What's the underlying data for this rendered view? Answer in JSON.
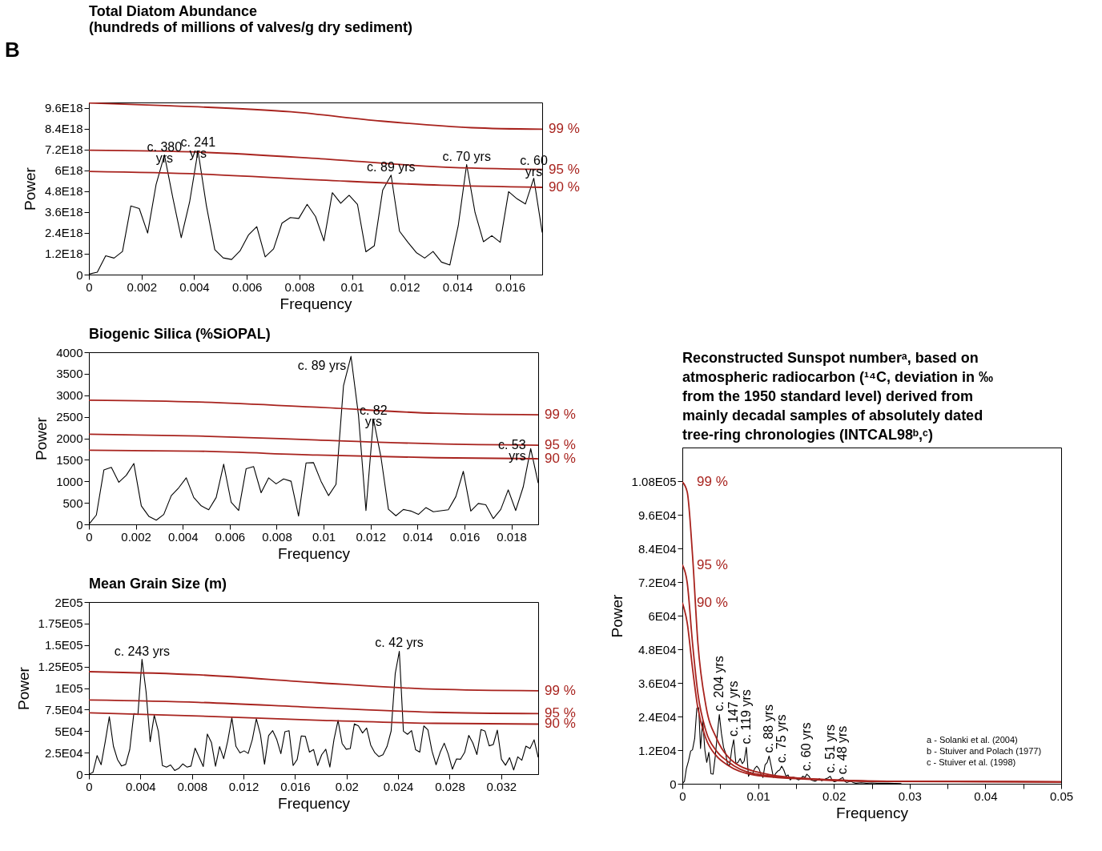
{
  "chart_data": [
    {
      "type": "line",
      "title": "Total Diatom Abundance",
      "subtitle": "(hundreds of millions of valves/g dry sediment)",
      "xlabel": "Frequency",
      "ylabel": "Power",
      "xlim": [
        0,
        0.017226
      ],
      "ylim": [
        0,
        9.9e+18
      ],
      "xticks": [
        0,
        0.002,
        0.004,
        0.006,
        0.008,
        0.01,
        0.012,
        0.014,
        0.016
      ],
      "yticks": [
        0,
        {
          "value": 1.2e+18,
          "label": "1.2E18"
        },
        {
          "value": 2.4e+18,
          "label": "2.4E18"
        },
        {
          "value": 3.6e+18,
          "label": "3.6E18"
        },
        {
          "value": 4.8e+18,
          "label": "4.8E18"
        },
        {
          "value": 6e+18,
          "label": "6E18"
        },
        {
          "value": 7.2e+18,
          "label": "7.2E18"
        },
        {
          "value": 8.4e+18,
          "label": "8.4E18"
        },
        {
          "value": 9.6e+18,
          "label": "9.6E18"
        }
      ],
      "series": [
        {
          "color": "#000000",
          "x": [
            0,
            0.000319,
            0.000638,
            0.000957,
            0.001276,
            0.001595,
            0.001914,
            0.002233,
            0.002552,
            0.002871,
            0.00319,
            0.003509,
            0.003828,
            0.004147,
            0.004466,
            0.004785,
            0.005104,
            0.005423,
            0.005742,
            0.006061,
            0.00638,
            0.006699,
            0.007018,
            0.007337,
            0.007656,
            0.007975,
            0.008294,
            0.008613,
            0.008932,
            0.009251,
            0.00957,
            0.009889,
            0.010208,
            0.010527,
            0.010846,
            0.011165,
            0.011484,
            0.011803,
            0.012122,
            0.012441,
            0.01276,
            0.013079,
            0.013398,
            0.013717,
            0.014036,
            0.014355,
            0.014674,
            0.014993,
            0.015312,
            0.015631,
            0.01595,
            0.016269,
            0.016588,
            0.016907,
            0.017226
          ],
          "values": [
            3e+16,
            1.4e+17,
            1.08e+18,
            9.5e+17,
            1.33e+18,
            3.95e+18,
            3.8e+18,
            2.39e+18,
            5.17e+18,
            6.88e+18,
            4.41e+18,
            2.12e+18,
            4.18e+18,
            7.12e+18,
            3.95e+18,
            1.43e+18,
            9.6e+17,
            8.7e+17,
            1.36e+18,
            2.27e+18,
            2.76e+18,
            1.02e+18,
            1.48e+18,
            2.96e+18,
            3.28e+18,
            3.23e+18,
            4.04e+18,
            3.34e+18,
            1.94e+18,
            4.71e+18,
            4.1e+18,
            4.56e+18,
            4.03e+18,
            1.31e+18,
            1.66e+18,
            4.86e+18,
            5.72e+18,
            2.5e+18,
            1.86e+18,
            1.27e+18,
            9.5e+17,
            1.33e+18,
            7.2e+17,
            5.5e+17,
            2.81e+18,
            6.33e+18,
            3.57e+18,
            1.89e+18,
            2.24e+18,
            1.86e+18,
            4.77e+18,
            4.36e+18,
            4.06e+18,
            5.54e+18,
            2.42e+18
          ]
        },
        {
          "name": "99 %",
          "color": "#a8231e",
          "x": [
            0,
            0.0031,
            0.00768,
            0.01111,
            0.01454,
            0.017226
          ],
          "values": [
            9.87e+18,
            9.71e+18,
            9.36e+18,
            8.83e+18,
            8.45e+18,
            8.36e+18
          ]
        },
        {
          "name": "95 %",
          "color": "#a8231e",
          "x": [
            0,
            0.00424,
            0.00882,
            0.0134,
            0.017226
          ],
          "values": [
            7.15e+18,
            7.04e+18,
            6.66e+18,
            6.19e+18,
            6.05e+18
          ]
        },
        {
          "name": "90 %",
          "color": "#a8231e",
          "x": [
            0,
            0.00424,
            0.00882,
            0.0134,
            0.017226
          ],
          "values": [
            5.93e+18,
            5.78e+18,
            5.44e+18,
            5.14e+18,
            5.02e+18
          ]
        }
      ],
      "annotations": [
        "B",
        {
          "text": "c. 380\nyrs",
          "x": 0.002871,
          "y": 6.88e+18
        },
        {
          "text": "c. 241\nyrs",
          "x": 0.004147,
          "y": 7.12e+18
        },
        {
          "text": "c. 89 yrs",
          "x": 0.011484,
          "y": 5.72e+18
        },
        {
          "text": "c. 70 yrs",
          "x": 0.014355,
          "y": 6.33e+18
        },
        {
          "text": "c. 60\nyrs",
          "x": 0.016907,
          "y": 5.54e+18
        }
      ]
    },
    {
      "type": "line",
      "title": "Biogenic Silica (%SiOPAL)",
      "xlabel": "Frequency",
      "ylabel": "Power",
      "xlim": [
        0,
        0.01914
      ],
      "ylim": [
        0,
        4000
      ],
      "xticks": [
        0,
        0.002,
        0.004,
        0.006,
        0.008,
        0.01,
        0.012,
        0.014,
        0.016,
        0.018
      ],
      "yticks": [
        0,
        500,
        1000,
        1500,
        2000,
        2500,
        3000,
        3500,
        4000
      ],
      "series": [
        {
          "color": "#000000",
          "x": [
            0,
            0.000319,
            0.000638,
            0.000957,
            0.001276,
            0.001595,
            0.001914,
            0.002233,
            0.002552,
            0.002871,
            0.00319,
            0.003509,
            0.003828,
            0.004147,
            0.004466,
            0.004785,
            0.005104,
            0.005423,
            0.005742,
            0.006061,
            0.00638,
            0.006699,
            0.007018,
            0.007337,
            0.007656,
            0.007975,
            0.008294,
            0.008613,
            0.008932,
            0.009251,
            0.00957,
            0.009889,
            0.010208,
            0.010527,
            0.010846,
            0.011165,
            0.011484,
            0.011803,
            0.012122,
            0.012441,
            0.01276,
            0.013079,
            0.013398,
            0.013717,
            0.014036,
            0.014355,
            0.014674,
            0.014993,
            0.015312,
            0.015631,
            0.01595,
            0.016269,
            0.016588,
            0.016907,
            0.017226,
            0.017545,
            0.017864,
            0.018183,
            0.018502,
            0.018821,
            0.01914
          ],
          "values": [
            0,
            219,
            1264,
            1324,
            978,
            1142,
            1415,
            431,
            188,
            97,
            231,
            668,
            851,
            1081,
            626,
            431,
            340,
            626,
            1397,
            516,
            322,
            1294,
            1343,
            735,
            1081,
            942,
            1057,
            1002,
            194,
            1428,
            1434,
            1002,
            668,
            929,
            3220,
            3906,
            2539,
            322,
            2448,
            1567,
            352,
            200,
            346,
            310,
            231,
            389,
            292,
            316,
            340,
            644,
            1233,
            310,
            486,
            456,
            134,
            346,
            802,
            322,
            869,
            1762,
            960
          ]
        },
        {
          "name": "99 %",
          "color": "#a8231e",
          "x": [
            0,
            0.00467,
            0.00972,
            0.01476,
            0.01914
          ],
          "values": [
            2886,
            2843,
            2722,
            2582,
            2545
          ]
        },
        {
          "name": "95 %",
          "color": "#a8231e",
          "x": [
            0,
            0.00467,
            0.00972,
            0.01476,
            0.01914
          ],
          "values": [
            2096,
            2053,
            1962,
            1871,
            1841
          ]
        },
        {
          "name": "90 %",
          "color": "#a8231e",
          "x": [
            0,
            0.00467,
            0.00972,
            0.01476,
            0.01914
          ],
          "values": [
            1725,
            1701,
            1610,
            1549,
            1525
          ]
        }
      ],
      "annotations": [
        {
          "text": "c. 89 yrs",
          "x": 0.011165,
          "y": 3906
        },
        {
          "text": "c. 82\nyrs",
          "x": 0.012122,
          "y": 2448
        },
        {
          "text": "c. 53\nyrs",
          "x": 0.018821,
          "y": 1762
        }
      ]
    },
    {
      "type": "line",
      "title": "Mean Grain Size (m)",
      "xlabel": "Frequency",
      "ylabel": "Power",
      "xlim": [
        0,
        0.03487
      ],
      "ylim": [
        0,
        200000
      ],
      "xticks": [
        0,
        0.004,
        0.008,
        0.012,
        0.016,
        0.02,
        0.024,
        0.028,
        0.032
      ],
      "yticks": [
        0,
        {
          "value": 25000,
          "label": "2.5E04"
        },
        {
          "value": 50000,
          "label": "5E04"
        },
        {
          "value": 75000,
          "label": "7.5E04"
        },
        {
          "value": 100000,
          "label": "1E05"
        },
        {
          "value": 125000,
          "label": "1.25E05"
        },
        {
          "value": 150000,
          "label": "1.5E05"
        },
        {
          "value": 175000,
          "label": "1.75E05"
        },
        {
          "value": 200000,
          "label": "2E05"
        }
      ],
      "series": [
        {
          "color": "#000000",
          "x": [
            0,
            0.000317,
            0.000634,
            0.000951,
            0.001268,
            0.001585,
            0.001902,
            0.002219,
            0.002536,
            0.002853,
            0.00317,
            0.003487,
            0.003804,
            0.004121,
            0.004438,
            0.004755,
            0.005072,
            0.005389,
            0.005706,
            0.006023,
            0.00634,
            0.006657,
            0.006974,
            0.007291,
            0.007608,
            0.007925,
            0.008242,
            0.008559,
            0.008876,
            0.009193,
            0.00951,
            0.009827,
            0.010144,
            0.010461,
            0.010778,
            0.011095,
            0.011412,
            0.011729,
            0.012046,
            0.012363,
            0.01268,
            0.012997,
            0.013314,
            0.013631,
            0.013948,
            0.014265,
            0.014582,
            0.014899,
            0.015216,
            0.015533,
            0.01585,
            0.016167,
            0.016484,
            0.016801,
            0.017118,
            0.017435,
            0.017752,
            0.018069,
            0.018386,
            0.018703,
            0.01902,
            0.019337,
            0.019654,
            0.019971,
            0.020288,
            0.020605,
            0.020922,
            0.021239,
            0.021556,
            0.021873,
            0.02219,
            0.022507,
            0.022824,
            0.023141,
            0.023458,
            0.023775,
            0.024092,
            0.024409,
            0.024726,
            0.025043,
            0.02536,
            0.025677,
            0.025994,
            0.026311,
            0.026628,
            0.026945,
            0.027262,
            0.027579,
            0.027896,
            0.028213,
            0.02853,
            0.028847,
            0.029164,
            0.029481,
            0.029798,
            0.030115,
            0.030432,
            0.030749,
            0.031066,
            0.031383,
            0.0317,
            0.032017,
            0.032334,
            0.032651,
            0.032968,
            0.033285,
            0.033602,
            0.033919,
            0.034236,
            0.034553,
            0.03487
          ],
          "values": [
            0,
            2132,
            21620,
            10960,
            37760,
            66690,
            32580,
            17050,
            9440,
            11270,
            28620,
            70340,
            69120,
            133370,
            95610,
            37760,
            68510,
            49940,
            10050,
            8220,
            10660,
            4260,
            6700,
            11880,
            8220,
            9440,
            30150,
            19490,
            8830,
            46590,
            36840,
            9140,
            31970,
            17970,
            38670,
            65470,
            32280,
            24660,
            27100,
            24060,
            39890,
            64250,
            45980,
            11570,
            44760,
            50550,
            40190,
            23750,
            49330,
            50550,
            10050,
            17050,
            44460,
            43850,
            25580,
            28620,
            10050,
            22530,
            28930,
            8220,
            40190,
            62420,
            35630,
            28930,
            29840,
            58460,
            56030,
            47810,
            53590,
            33800,
            24970,
            20400,
            22530,
            32280,
            50240,
            116930,
            142810,
            49940,
            46280,
            50550,
            28320,
            25580,
            56030,
            51460,
            26800,
            10960,
            25270,
            35930,
            23140,
            5790,
            17660,
            17360,
            25270,
            45070,
            36240,
            22840,
            51770,
            49940,
            32890,
            34410,
            51160,
            17360,
            10350,
            19180,
            4870,
            20100,
            16140,
            32580,
            29840,
            39890,
            19490
          ]
        },
        {
          "name": "99 %",
          "color": "#a8231e",
          "x": [
            0,
            0.00851,
            0.0177,
            0.0269,
            0.03487
          ],
          "values": [
            119060,
            115410,
            106270,
            98660,
            96830
          ]
        },
        {
          "name": "95 %",
          "color": "#a8231e",
          "x": [
            0,
            0.00851,
            0.0177,
            0.0269,
            0.03487
          ],
          "values": [
            86170,
            83430,
            77340,
            71860,
            70340
          ]
        },
        {
          "name": "90 %",
          "color": "#a8231e",
          "x": [
            0,
            0.00851,
            0.0177,
            0.0269,
            0.03487
          ],
          "values": [
            71250,
            67600,
            62730,
            59070,
            58160
          ]
        }
      ],
      "annotations": [
        {
          "text": "c. 243 yrs",
          "x": 0.004121,
          "y": 133370
        },
        {
          "text": "c. 42 yrs",
          "x": 0.024092,
          "y": 142810
        }
      ]
    },
    {
      "type": "line",
      "title": "Reconstructed Sunspot numberᵃ, based on atmospheric radiocarbon (¹⁴C, deviation in ‰ from the 1950 standard level) derived from mainly decadal samples of absolutely dated tree-ring chronologies (INTCAL98ᵇ,ᶜ)",
      "xlabel": "Frequency",
      "ylabel": "Power",
      "xlim": [
        0,
        0.05
      ],
      "ylim": [
        0,
        120000
      ],
      "xticks": [
        0,
        {
          "value": 0.005,
          "label": null
        },
        0.01,
        {
          "value": 0.015,
          "label": null
        },
        0.02,
        {
          "value": 0.025,
          "label": null
        },
        0.03,
        {
          "value": 0.035,
          "label": null
        },
        0.04,
        {
          "value": 0.045,
          "label": null
        },
        0.05
      ],
      "yticks": [
        0,
        {
          "value": 12000,
          "label": "1.2E04"
        },
        {
          "value": 24000,
          "label": "2.4E04"
        },
        {
          "value": 36000,
          "label": "3.6E04"
        },
        {
          "value": 48000,
          "label": "4.8E04"
        },
        {
          "value": 60000,
          "label": "6E04"
        },
        {
          "value": 72000,
          "label": "7.2E04"
        },
        {
          "value": 84000,
          "label": "8.4E04"
        },
        {
          "value": 96000,
          "label": "9.6E04"
        },
        {
          "value": 108000,
          "label": "1.08E05"
        }
      ],
      "series": [
        {
          "color": "#000000",
          "x": [
            0,
            0.00028,
            0.00053,
            0.00081,
            0.0011,
            0.00134,
            0.00163,
            0.00191,
            0.00216,
            0.0024,
            0.00269,
            0.00297,
            0.00322,
            0.0035,
            0.00378,
            0.00406,
            0.00435,
            0.00463,
            0.00488,
            0.00516,
            0.00544,
            0.00572,
            0.00597,
            0.00625,
            0.00654,
            0.00678,
            0.00707,
            0.00735,
            0.00763,
            0.00791,
            0.00816,
            0.00845,
            0.00873,
            0.00901,
            0.00926,
            0.00954,
            0.00982,
            0.01011,
            0.01035,
            0.01064,
            0.01092,
            0.0112,
            0.01145,
            0.01173,
            0.01202,
            0.0123,
            0.01258,
            0.01286,
            0.01311,
            0.01339,
            0.01368,
            0.01396,
            0.01424,
            0.01452,
            0.01477,
            0.01505,
            0.01534,
            0.01562,
            0.0159,
            0.01619,
            0.01643,
            0.01672,
            0.017,
            0.01728,
            0.01756,
            0.01785,
            0.01809,
            0.01838,
            0.01866,
            0.01894,
            0.01922,
            0.01951,
            0.01976,
            0.02004,
            0.02032,
            0.0206,
            0.02089,
            0.02117,
            0.02142,
            0.0217,
            0.02198,
            0.02226,
            0.02255,
            0.0229,
            0.02361,
            0.02431,
            0.02502,
            0.02573,
            0.02714,
            0.02891
          ],
          "values": [
            0,
            898,
            5390,
            8080,
            11670,
            12120,
            16160,
            26940,
            27120,
            12570,
            22450,
            12120,
            7630,
            11230,
            3590,
            3410,
            9880,
            17960,
            24700,
            17960,
            13020,
            10780,
            6740,
            6740,
            12570,
            15720,
            7180,
            7630,
            8980,
            7180,
            8080,
            13020,
            2690,
            4040,
            3590,
            5390,
            6290,
            5390,
            3590,
            2250,
            6740,
            7630,
            9880,
            6290,
            2250,
            3590,
            4490,
            4940,
            6290,
            4940,
            2690,
            3140,
            1350,
            2250,
            2250,
            1800,
            1350,
            1800,
            2690,
            2250,
            3410,
            2690,
            1350,
            1080,
            898,
            1350,
            1800,
            1080,
            1350,
            1800,
            2070,
            2690,
            1350,
            720,
            898,
            1350,
            1800,
            2250,
            898,
            450,
            720,
            898,
            450,
            180,
            360,
            180,
            270,
            180,
            180,
            90
          ]
        },
        {
          "name": "99 %",
          "color": "#a8231e",
          "x": [
            0,
            0.00064,
            0.00134,
            0.00205,
            0.00311,
            0.00452,
            0.00594,
            0.00947,
            0.01654,
            0.02714,
            0.05
          ],
          "values": [
            107760,
            104170,
            81720,
            50290,
            27840,
            16160,
            9880,
            4490,
            1800,
            898,
            700
          ]
        },
        {
          "name": "95 %",
          "color": "#a8231e",
          "x": [
            0,
            0.00064,
            0.00134,
            0.00205,
            0.00311,
            0.00452,
            0.00594,
            0.00947,
            0.01654,
            0.02714,
            0.05
          ],
          "values": [
            78130,
            71840,
            50290,
            32330,
            18860,
            11670,
            8080,
            3590,
            1800,
            898,
            700
          ]
        },
        {
          "name": "90 %",
          "color": "#a8231e",
          "x": [
            0,
            0.00064,
            0.00134,
            0.00205,
            0.00311,
            0.00452,
            0.00594,
            0.00947,
            0.01654,
            0.02714,
            0.05
          ],
          "values": [
            64660,
            57470,
            41310,
            26940,
            16160,
            9880,
            6740,
            3140,
            1620,
            810,
            600
          ]
        }
      ],
      "annotations": [
        {
          "text": "c. 204 yrs",
          "x": 0.00488,
          "y": 24700
        },
        {
          "text": "c. 147 yrs",
          "x": 0.00678,
          "y": 15720
        },
        {
          "text": "c. 119 yrs",
          "x": 0.00845,
          "y": 13020
        },
        {
          "text": "c. 88 yrs",
          "x": 0.01145,
          "y": 9880
        },
        {
          "text": "c. 75 yrs",
          "x": 0.01311,
          "y": 6290
        },
        {
          "text": "c. 60 yrs",
          "x": 0.01643,
          "y": 3410
        },
        {
          "text": "c. 51 yrs",
          "x": 0.01951,
          "y": 2690
        },
        {
          "text": "c. 48 yrs",
          "x": 0.02117,
          "y": 2250
        },
        "a - Solanki et al. (2004)",
        "b - Stuiver and Polach (1977)",
        "c - Stuiver et al. (1998)"
      ]
    }
  ]
}
